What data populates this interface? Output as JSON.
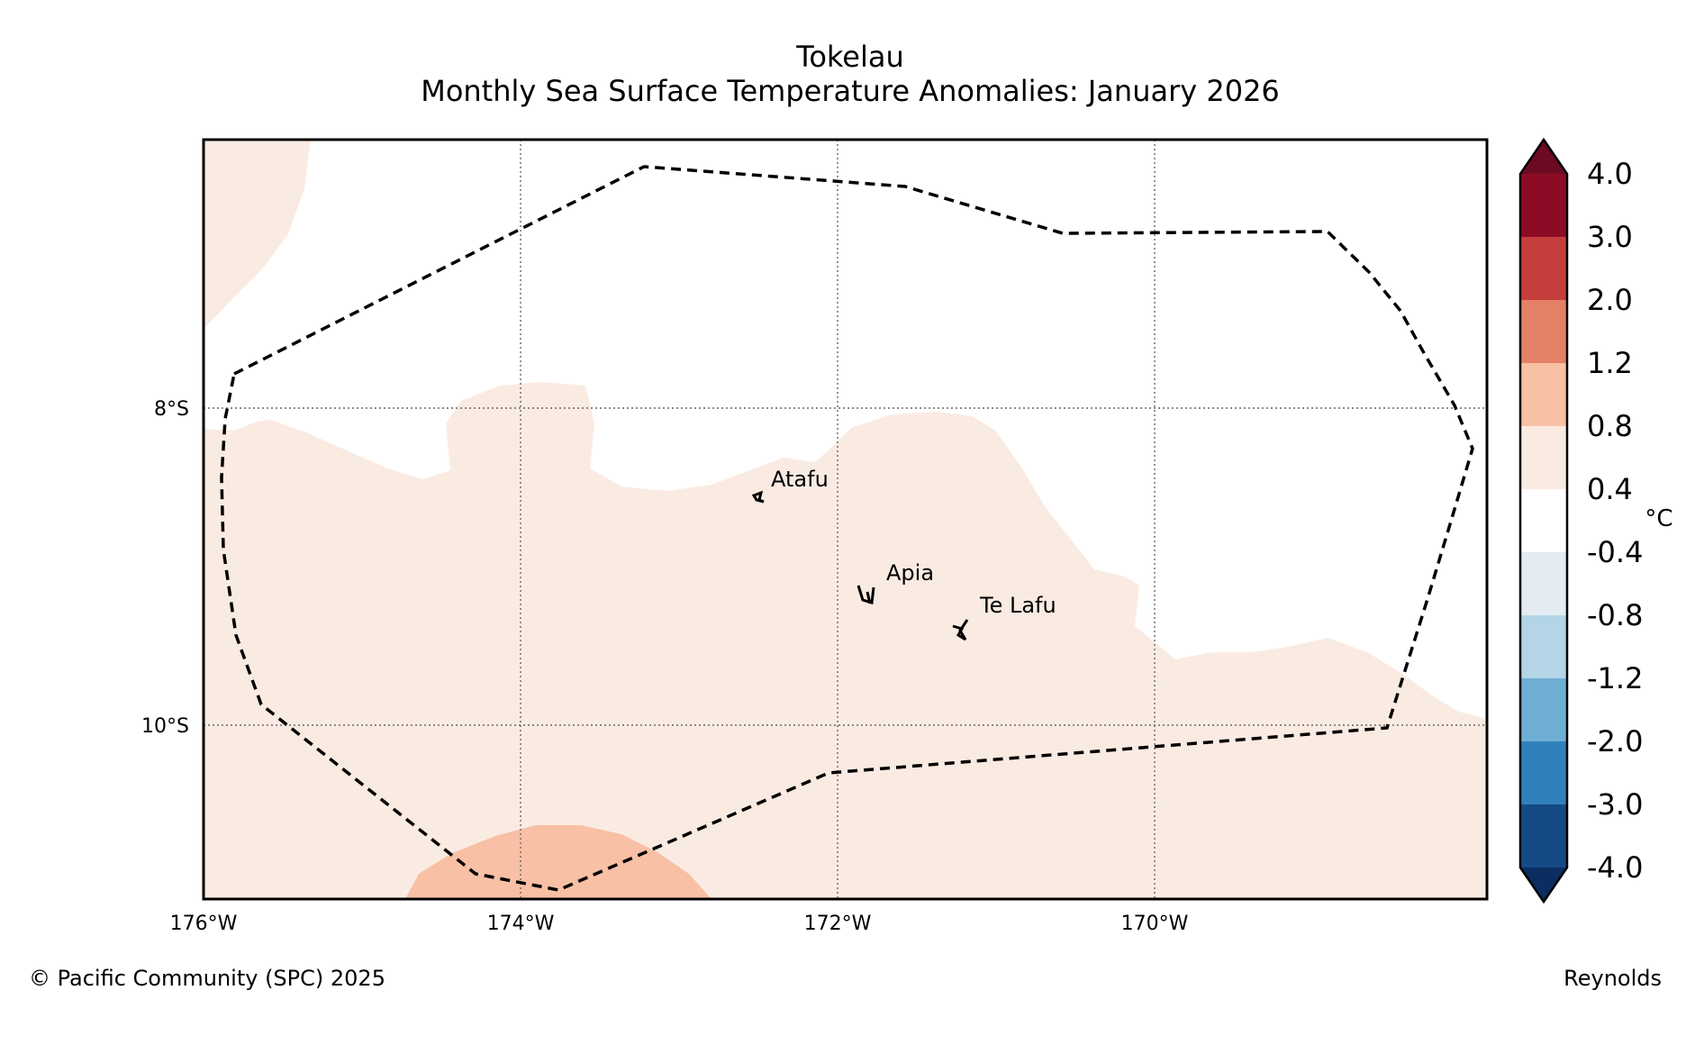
{
  "title": "Tokelau",
  "subtitle": "Monthly Sea Surface Temperature Anomalies: January 2026",
  "axes": {
    "x_ticks": [
      "176°W",
      "174°W",
      "172°W",
      "170°W"
    ],
    "y_ticks": [
      "8°S",
      "10°S"
    ]
  },
  "places": [
    {
      "name": "Atafu"
    },
    {
      "name": "Apia"
    },
    {
      "name": "Te Lafu"
    }
  ],
  "colorbar": {
    "unit": "°C",
    "labels": [
      "4.0",
      "3.0",
      "2.0",
      "1.2",
      "0.8",
      "0.4",
      "-0.4",
      "-0.8",
      "-1.2",
      "-2.0",
      "-3.0",
      "-4.0"
    ],
    "colors": [
      "#6b0b23",
      "#8c0c25",
      "#c53e3d",
      "#e48066",
      "#f8c0a4",
      "#faebe2",
      "#ffffff",
      "#e3ebf3",
      "#b3d5e7",
      "#6eaed3",
      "#3080bc",
      "#144b87",
      "#0b2e61"
    ]
  },
  "legend": {
    "anomaly_range": "0.4 to 0.8",
    "warm_range": "0.8 to 1.2"
  },
  "footer": {
    "copyright": "© Pacific Community (SPC) 2025",
    "source": "Reynolds"
  }
}
